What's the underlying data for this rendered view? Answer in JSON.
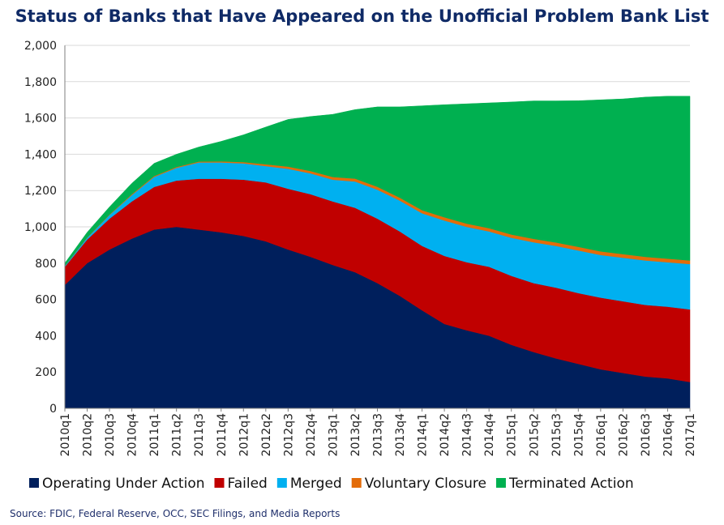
{
  "chart_data": {
    "type": "area",
    "stacked": true,
    "title": "Status of Banks that Have Appeared on the Unofficial Problem Bank List",
    "source": "Source: FDIC, Federal Reserve, OCC, SEC Filings, and Media Reports",
    "xlabel": "",
    "ylabel": "",
    "ylim": [
      0,
      2000
    ],
    "yticks": [
      0,
      200,
      400,
      600,
      800,
      "1,000",
      "1,200",
      "1,400",
      "1,600",
      "1,800",
      "2,000"
    ],
    "ytick_values": [
      0,
      200,
      400,
      600,
      800,
      1000,
      1200,
      1400,
      1600,
      1800,
      2000
    ],
    "categories": [
      "2010q1",
      "2010q2",
      "2010q3",
      "2010q4",
      "2011q1",
      "2011q2",
      "2011q3",
      "2011q4",
      "2012q1",
      "2012q2",
      "2012q3",
      "2012q4",
      "2013q1",
      "2013q2",
      "2013q3",
      "2013q4",
      "2014q1",
      "2014q2",
      "2014q3",
      "2014q4",
      "2015q1",
      "2015q2",
      "2015q3",
      "2015q4",
      "2016q1",
      "2016q2",
      "2016q3",
      "2016q4",
      "2017q1"
    ],
    "x_points": 57,
    "series": [
      {
        "name": "Operating Under Action",
        "color": "#001f5c",
        "values": [
          680,
          800,
          875,
          935,
          985,
          1000,
          985,
          970,
          950,
          920,
          875,
          835,
          790,
          750,
          690,
          620,
          540,
          465,
          430,
          400,
          350,
          310,
          275,
          245,
          215,
          195,
          175,
          165,
          145
        ]
      },
      {
        "name": "Failed",
        "color": "#c00000",
        "values": [
          100,
          130,
          170,
          205,
          235,
          255,
          280,
          295,
          310,
          325,
          335,
          345,
          350,
          355,
          355,
          355,
          355,
          375,
          375,
          380,
          380,
          380,
          390,
          390,
          395,
          395,
          395,
          395,
          400
        ]
      },
      {
        "name": "Merged",
        "color": "#00b0f0",
        "values": [
          5,
          10,
          20,
          35,
          55,
          70,
          90,
          90,
          90,
          90,
          110,
          115,
          120,
          145,
          160,
          170,
          180,
          195,
          195,
          195,
          210,
          225,
          230,
          235,
          235,
          240,
          245,
          245,
          250
        ]
      },
      {
        "name": "Voluntary Closure",
        "color": "#e36c09",
        "values": [
          1,
          2,
          3,
          5,
          5,
          5,
          5,
          6,
          7,
          10,
          12,
          13,
          15,
          16,
          16,
          16,
          17,
          18,
          18,
          18,
          18,
          19,
          19,
          20,
          20,
          20,
          20,
          20,
          20
        ]
      },
      {
        "name": "Terminated Action",
        "color": "#00b050",
        "values": [
          14,
          28,
          42,
          60,
          70,
          70,
          80,
          110,
          150,
          205,
          260,
          300,
          345,
          380,
          440,
          500,
          575,
          620,
          660,
          690,
          730,
          760,
          780,
          805,
          835,
          855,
          880,
          895,
          905
        ]
      }
    ],
    "legend_position": "bottom"
  }
}
